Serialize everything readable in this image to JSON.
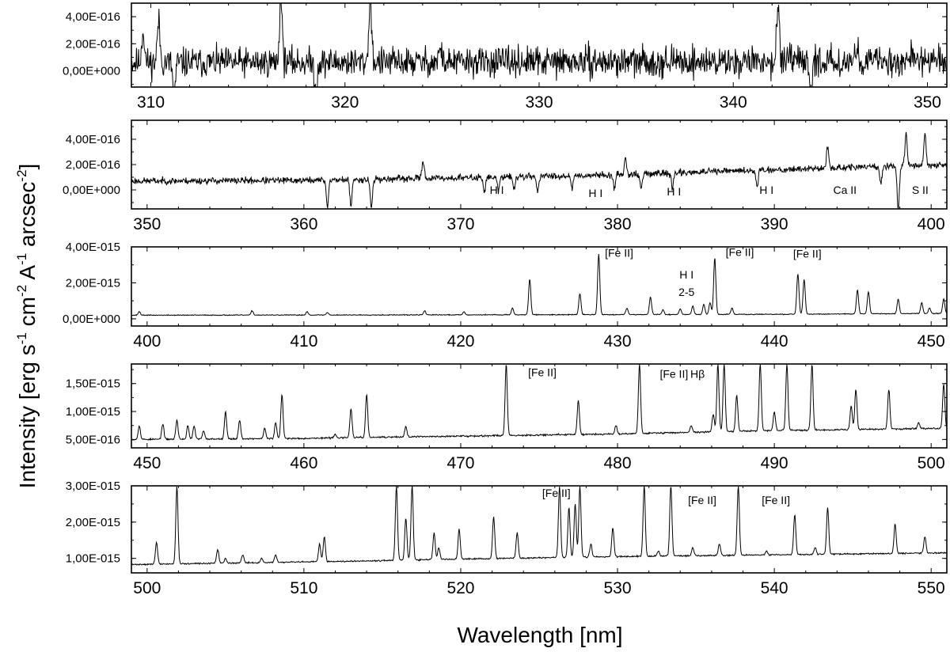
{
  "chart_data": {
    "type": "line",
    "xlabel": "Wavelength [nm]",
    "ylabel": {
      "parts": [
        "Intensity [erg s",
        "-1",
        " cm",
        "-2",
        " A",
        "-1",
        " arcsec",
        "-2",
        "]"
      ]
    },
    "panels": [
      {
        "xlim": [
          309,
          351
        ],
        "xticks": [
          310,
          320,
          330,
          340,
          350
        ],
        "xtick_labels": [
          "310",
          "320",
          "330",
          "340",
          "350"
        ],
        "ylim": [
          -1.2e-16,
          5e-16
        ],
        "yticks": [
          0,
          2e-16,
          4e-16
        ],
        "ytick_labels": [
          "0,00E+000",
          "2,00E-016",
          "4,00E-016"
        ],
        "baseline": [
          [
            309,
            6e-17
          ],
          [
            351,
            7e-17
          ]
        ],
        "noise": 9e-17,
        "seed": 11,
        "lines": [
          [
            309.6,
            3e-16
          ],
          [
            310.4,
            3.6e-16
          ],
          [
            316.7,
            5.6e-16
          ],
          [
            321.3,
            5.4e-16
          ],
          [
            342.3,
            5e-16
          ],
          [
            344.0,
            -1.5e-16
          ],
          [
            311.2,
            -1.6e-16
          ],
          [
            318.5,
            -1.4e-16
          ],
          [
            324.9,
            1.6e-16
          ],
          [
            346.4,
            1.7e-16
          ],
          [
            349.2,
            1.5e-16
          ]
        ],
        "annotations": []
      },
      {
        "xlim": [
          349,
          401
        ],
        "xticks": [
          350,
          360,
          370,
          380,
          390,
          400
        ],
        "xtick_labels": [
          "350",
          "360",
          "370",
          "380",
          "390",
          "400"
        ],
        "ylim": [
          -1.5e-16,
          5.5e-16
        ],
        "yticks": [
          0,
          2e-16,
          4e-16
        ],
        "ytick_labels": [
          "0,00E+000",
          "2,00E-016",
          "4,00E-016"
        ],
        "baseline": [
          [
            349,
            7e-17
          ],
          [
            360,
            7.5e-17
          ],
          [
            370,
            9.5e-17
          ],
          [
            380,
            1.2e-16
          ],
          [
            390,
            1.6e-16
          ],
          [
            401,
            2e-16
          ]
        ],
        "noise": 2.2e-17,
        "seed": 23,
        "lines": [
          [
            361.5,
            -1.3e-16
          ],
          [
            363.0,
            -1.3e-16
          ],
          [
            364.3,
            -1.4e-16
          ],
          [
            367.6,
            2.4e-16
          ],
          [
            371.5,
            -1e-17
          ],
          [
            372.4,
            -1e-17
          ],
          [
            373.4,
            1e-17
          ],
          [
            374.9,
            -1e-17
          ],
          [
            377.1,
            2e-17
          ],
          [
            379.8,
            1e-17
          ],
          [
            381.5,
            1e-17
          ],
          [
            383.5,
            1e-17
          ],
          [
            388.9,
            3e-17
          ],
          [
            393.4,
            3.4e-16
          ],
          [
            396.8,
            5e-17
          ],
          [
            397.9,
            -1.5e-16
          ],
          [
            398.4,
            4.4e-16
          ],
          [
            399.6,
            4.5e-16
          ],
          [
            380.5,
            2.6e-16
          ]
        ],
        "annotations": [
          {
            "text": "H I",
            "x": 372.3,
            "y": -3e-17
          },
          {
            "text": "H I",
            "x": 378.6,
            "y": -5.5e-17
          },
          {
            "text": "H I",
            "x": 383.6,
            "y": -4.5e-17
          },
          {
            "text": "H I",
            "x": 389.5,
            "y": -3e-17
          },
          {
            "text": "Ca II",
            "x": 394.5,
            "y": -3e-17
          },
          {
            "text": "S II",
            "x": 399.3,
            "y": -3e-17
          }
        ]
      },
      {
        "xlim": [
          399,
          451
        ],
        "xticks": [
          400,
          410,
          420,
          430,
          440,
          450
        ],
        "xtick_labels": [
          "400",
          "410",
          "420",
          "430",
          "440",
          "450"
        ],
        "ylim": [
          -4e-16,
          4e-15
        ],
        "yticks": [
          0,
          2e-15,
          4e-15
        ],
        "ytick_labels": [
          "0,00E+000",
          "2,00E-015",
          "4,00E-015"
        ],
        "baseline": [
          [
            399,
            2e-16
          ],
          [
            420,
            2.2e-16
          ],
          [
            440,
            2.5e-16
          ],
          [
            451,
            3e-16
          ]
        ],
        "noise": 2e-17,
        "seed": 37,
        "lines": [
          [
            399.5,
            4e-16
          ],
          [
            406.7,
            4.5e-16
          ],
          [
            410.2,
            4e-16
          ],
          [
            411.5,
            3.5e-16
          ],
          [
            417.7,
            4.5e-16
          ],
          [
            420.2,
            4e-16
          ],
          [
            423.3,
            6e-16
          ],
          [
            424.4,
            2.2e-15
          ],
          [
            427.6,
            1.4e-15
          ],
          [
            428.8,
            3.6e-15
          ],
          [
            430.6,
            6e-16
          ],
          [
            432.1,
            1.2e-15
          ],
          [
            432.9,
            5e-16
          ],
          [
            434.0,
            5.5e-16
          ],
          [
            434.8,
            7e-16
          ],
          [
            435.5,
            8e-16
          ],
          [
            435.9,
            9e-16
          ],
          [
            436.2,
            3.4e-15
          ],
          [
            437.3,
            6e-16
          ],
          [
            441.5,
            2.5e-15
          ],
          [
            441.9,
            2.2e-15
          ],
          [
            445.3,
            1.6e-15
          ],
          [
            446.0,
            1.5e-15
          ],
          [
            447.9,
            1.1e-15
          ],
          [
            449.4,
            9e-16
          ],
          [
            449.9,
            6e-16
          ],
          [
            450.8,
            1.1e-15
          ]
        ],
        "annotations": [
          {
            "text": "[Fe II]",
            "x": 430.1,
            "y": 3.45e-15
          },
          {
            "text": "H I",
            "x": 434.4,
            "y": 2.25e-15
          },
          {
            "text": "2-5",
            "x": 434.4,
            "y": 1.28e-15
          },
          {
            "text": "[Fe II]",
            "x": 437.8,
            "y": 3.5e-15
          },
          {
            "text": "[Fe II]",
            "x": 442.1,
            "y": 3.4e-15
          }
        ]
      },
      {
        "xlim": [
          449,
          501
        ],
        "xticks": [
          450,
          460,
          470,
          480,
          490,
          500
        ],
        "xtick_labels": [
          "450",
          "460",
          "470",
          "480",
          "490",
          "500"
        ],
        "ylim": [
          3.5e-16,
          1.85e-15
        ],
        "yticks": [
          5e-16,
          1e-15,
          1.5e-15
        ],
        "ytick_labels": [
          "5,00E-016",
          "1,00E-015",
          "1,50E-015"
        ],
        "baseline": [
          [
            449,
            5e-16
          ],
          [
            460,
            5.2e-16
          ],
          [
            470,
            5.6e-16
          ],
          [
            480,
            6e-16
          ],
          [
            490,
            6.6e-16
          ],
          [
            501,
            7e-16
          ]
        ],
        "noise": 1.2e-17,
        "seed": 53,
        "lines": [
          [
            449.5,
            7.5e-16
          ],
          [
            451.0,
            7.8e-16
          ],
          [
            451.9,
            8.5e-16
          ],
          [
            452.6,
            7.5e-16
          ],
          [
            453.0,
            7.4e-16
          ],
          [
            453.6,
            6.5e-16
          ],
          [
            455.0,
            1e-15
          ],
          [
            455.9,
            8.5e-16
          ],
          [
            457.5,
            7e-16
          ],
          [
            458.2,
            8e-16
          ],
          [
            458.6,
            1.3e-15
          ],
          [
            462.0,
            6e-16
          ],
          [
            463.0,
            1.05e-15
          ],
          [
            464.0,
            1.3e-15
          ],
          [
            466.5,
            7.3e-16
          ],
          [
            472.9,
            1.85e-15
          ],
          [
            477.5,
            1.2e-15
          ],
          [
            479.9,
            7.5e-16
          ],
          [
            481.4,
            1.85e-15
          ],
          [
            484.7,
            7.5e-16
          ],
          [
            486.1,
            9.5e-16
          ],
          [
            486.4,
            1.85e-15
          ],
          [
            486.8,
            1.85e-15
          ],
          [
            487.6,
            1.3e-15
          ],
          [
            489.1,
            1.85e-15
          ],
          [
            490.0,
            1e-15
          ],
          [
            490.8,
            1.85e-15
          ],
          [
            492.4,
            1.85e-15
          ],
          [
            494.9,
            1.1e-15
          ],
          [
            495.2,
            1.4e-15
          ],
          [
            497.3,
            1.4e-15
          ],
          [
            499.2,
            8e-16
          ],
          [
            500.8,
            1.5e-15
          ]
        ],
        "annotations": [
          {
            "text": "[Fe II]",
            "x": 475.2,
            "y": 1.63e-15
          },
          {
            "text": "[Fe II]",
            "x": 483.6,
            "y": 1.6e-15
          },
          {
            "text": "Hβ",
            "x": 485.1,
            "y": 1.6e-15
          }
        ]
      },
      {
        "xlim": [
          499,
          551
        ],
        "xticks": [
          500,
          510,
          520,
          530,
          540,
          550
        ],
        "xtick_labels": [
          "500",
          "510",
          "520",
          "530",
          "540",
          "550"
        ],
        "ylim": [
          6e-16,
          3e-15
        ],
        "yticks": [
          1e-15,
          2e-15,
          3e-15
        ],
        "ytick_labels": [
          "1,00E-015",
          "2,00E-015",
          "3,00E-015"
        ],
        "baseline": [
          [
            499,
            8.3e-16
          ],
          [
            510,
            9e-16
          ],
          [
            520,
            9.8e-16
          ],
          [
            530,
            1.05e-15
          ],
          [
            540,
            1.1e-15
          ],
          [
            551,
            1.15e-15
          ]
        ],
        "noise": 1.6e-17,
        "seed": 71,
        "lines": [
          [
            500.6,
            1.45e-15
          ],
          [
            501.9,
            3e-15
          ],
          [
            504.5,
            1.25e-15
          ],
          [
            505.0,
            1e-15
          ],
          [
            506.1,
            1.1e-15
          ],
          [
            507.3,
            1e-15
          ],
          [
            508.2,
            1.1e-15
          ],
          [
            511.0,
            1.4e-15
          ],
          [
            511.3,
            1.6e-15
          ],
          [
            515.9,
            3e-15
          ],
          [
            516.5,
            2.1e-15
          ],
          [
            516.9,
            3e-15
          ],
          [
            518.3,
            1.7e-15
          ],
          [
            518.6,
            1.3e-15
          ],
          [
            519.9,
            1.8e-15
          ],
          [
            522.1,
            2.15e-15
          ],
          [
            523.6,
            1.7e-15
          ],
          [
            526.3,
            3e-15
          ],
          [
            526.9,
            2.4e-15
          ],
          [
            527.3,
            2.5e-15
          ],
          [
            527.6,
            3e-15
          ],
          [
            528.3,
            1.4e-15
          ],
          [
            529.7,
            1.85e-15
          ],
          [
            531.7,
            3e-15
          ],
          [
            532.6,
            1.2e-15
          ],
          [
            533.4,
            3e-15
          ],
          [
            534.8,
            1.3e-15
          ],
          [
            536.5,
            1.4e-15
          ],
          [
            537.7,
            3e-15
          ],
          [
            539.5,
            1.2e-15
          ],
          [
            541.3,
            2.2e-15
          ],
          [
            542.6,
            1.3e-15
          ],
          [
            543.4,
            2.4e-15
          ],
          [
            547.7,
            1.95e-15
          ],
          [
            549.6,
            1.6e-15
          ]
        ],
        "annotations": [
          {
            "text": "[Fe II]",
            "x": 526.1,
            "y": 2.7e-15
          },
          {
            "text": "[Fe II]",
            "x": 535.4,
            "y": 2.5e-15
          },
          {
            "text": "[Fe II]",
            "x": 540.1,
            "y": 2.5e-15
          }
        ]
      }
    ]
  }
}
